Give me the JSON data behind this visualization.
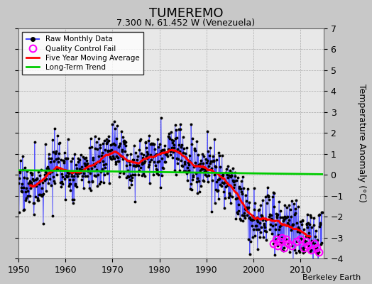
{
  "title": "TUMEREMO",
  "subtitle": "7.300 N, 61.452 W (Venezuela)",
  "ylabel": "Temperature Anomaly (°C)",
  "credit": "Berkeley Earth",
  "xlim": [
    1950,
    2015
  ],
  "ylim": [
    -4,
    7
  ],
  "yticks": [
    -4,
    -3,
    -2,
    -1,
    0,
    1,
    2,
    3,
    4,
    5,
    6,
    7
  ],
  "xticks": [
    1950,
    1960,
    1970,
    1980,
    1990,
    2000,
    2010
  ],
  "raw_color": "#4444ff",
  "ma_color": "#ff0000",
  "trend_color": "#00cc00",
  "qc_color": "#ff00ff",
  "fig_bg_color": "#c8c8c8",
  "plot_bg_color": "#e8e8e8",
  "grid_color": "#aaaaaa",
  "long_term_trend_y": 0.22,
  "trend_slope": -0.003
}
